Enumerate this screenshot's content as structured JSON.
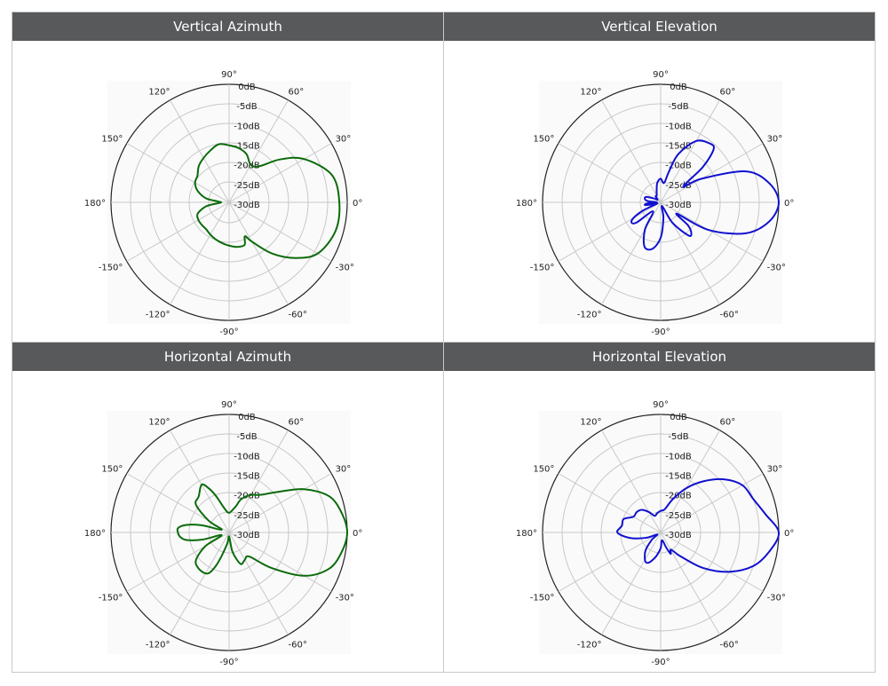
{
  "chart_data": [
    {
      "type": "polar",
      "title": "Vertical Azimuth",
      "color": "#0a6b0a",
      "radial_labels": [
        "0dB",
        "-5dB",
        "-10dB",
        "-15dB",
        "-20dB",
        "-25dB",
        "-30dB"
      ],
      "angle_labels": [
        "0°",
        "30°",
        "60°",
        "90°",
        "120°",
        "150°",
        "180°",
        "-150°",
        "-120°",
        "-90°",
        "-60°",
        "-30°"
      ],
      "rlim": [
        -30,
        0
      ],
      "grid": true,
      "series": [
        {
          "theta": [
            0,
            15,
            30,
            40,
            50,
            60,
            70,
            80,
            90,
            100,
            110,
            120,
            130,
            140,
            150,
            160,
            170,
            175,
            180,
            185,
            190,
            200,
            210,
            220,
            230,
            240,
            250,
            260,
            270,
            280,
            290,
            295,
            300,
            310,
            320,
            330,
            345
          ],
          "r": [
            -2,
            -3,
            -8,
            -13,
            -18,
            -19,
            -17,
            -16,
            -15.5,
            -15,
            -16,
            -17,
            -18,
            -19.5,
            -20,
            -21.5,
            -24,
            -27,
            -28,
            -27,
            -24,
            -21.5,
            -21,
            -21,
            -21,
            -20.5,
            -20,
            -19.5,
            -19,
            -18.5,
            -18.5,
            -20.5,
            -18.5,
            -13,
            -8,
            -4,
            -2
          ]
        }
      ]
    },
    {
      "type": "polar",
      "title": "Vertical Elevation",
      "color": "#1010d0",
      "radial_labels": [
        "0dB",
        "-5dB",
        "-10dB",
        "-15dB",
        "-20dB",
        "-25dB",
        "-30dB"
      ],
      "angle_labels": [
        "0°",
        "30°",
        "60°",
        "90°",
        "120°",
        "150°",
        "180°",
        "-150°",
        "-120°",
        "-90°",
        "-60°",
        "-30°"
      ],
      "rlim": [
        -30,
        0
      ],
      "grid": true,
      "series": [
        {
          "theta": [
            0,
            10,
            20,
            30,
            35,
            40,
            45,
            50,
            60,
            70,
            75,
            80,
            90,
            100,
            110,
            120,
            130,
            140,
            150,
            160,
            170,
            175,
            180,
            185,
            190,
            195,
            200,
            205,
            210,
            215,
            220,
            230,
            240,
            250,
            260,
            270,
            280,
            290,
            300,
            310,
            315,
            320,
            325,
            330,
            340,
            350
          ],
          "r": [
            0,
            -2,
            -7,
            -18,
            -23,
            -16,
            -11,
            -10.5,
            -12,
            -17,
            -22,
            -25,
            -24,
            -25,
            -27,
            -28,
            -28,
            -29,
            -28,
            -26,
            -26,
            -27,
            -29,
            -26.5,
            -26,
            -28,
            -29,
            -25,
            -22,
            -21,
            -22,
            -27,
            -22,
            -18,
            -18,
            -21,
            -26,
            -29,
            -24,
            -19,
            -19,
            -21,
            -25,
            -16,
            -7,
            -2
          ]
        }
      ]
    },
    {
      "type": "polar",
      "title": "Horizontal Azimuth",
      "color": "#0a6b0a",
      "radial_labels": [
        "0dB",
        "-5dB",
        "-10dB",
        "-15dB",
        "-20dB",
        "-25dB",
        "-30dB"
      ],
      "angle_labels": [
        "0°",
        "30°",
        "60°",
        "90°",
        "120°",
        "150°",
        "180°",
        "-150°",
        "-120°",
        "-90°",
        "-60°",
        "-30°"
      ],
      "rlim": [
        -30,
        0
      ],
      "grid": true,
      "series": [
        {
          "theta": [
            0,
            10,
            20,
            30,
            40,
            50,
            60,
            70,
            75,
            80,
            90,
            100,
            110,
            115,
            120,
            130,
            140,
            150,
            160,
            165,
            170,
            175,
            180,
            185,
            190,
            195,
            200,
            210,
            220,
            230,
            240,
            245,
            250,
            260,
            270,
            280,
            290,
            300,
            310,
            320,
            330,
            340,
            350
          ],
          "r": [
            0,
            -1,
            -3,
            -8,
            -14,
            -17.5,
            -19,
            -21,
            -23,
            -24,
            -25,
            -24,
            -20,
            -17.5,
            -16,
            -18,
            -19,
            -24,
            -28,
            -23,
            -19,
            -17,
            -17,
            -17.5,
            -19,
            -23,
            -28,
            -23,
            -19,
            -18,
            -18,
            -19,
            -22,
            -27,
            -29,
            -25,
            -21.5,
            -22,
            -22,
            -16,
            -8,
            -3,
            -1
          ]
        }
      ]
    },
    {
      "type": "polar",
      "title": "Horizontal Elevation",
      "color": "#1010d0",
      "radial_labels": [
        "0dB",
        "-5dB",
        "-10dB",
        "-15dB",
        "-20dB",
        "-25dB",
        "-30dB"
      ],
      "angle_labels": [
        "0°",
        "30°",
        "60°",
        "90°",
        "120°",
        "150°",
        "180°",
        "-150°",
        "-120°",
        "-90°",
        "-60°",
        "-30°"
      ],
      "rlim": [
        -30,
        0
      ],
      "grid": true,
      "series": [
        {
          "theta": [
            0,
            10,
            20,
            30,
            40,
            50,
            60,
            70,
            80,
            90,
            100,
            110,
            120,
            130,
            140,
            150,
            160,
            170,
            180,
            190,
            200,
            210,
            220,
            230,
            240,
            245,
            250,
            255,
            260,
            270,
            280,
            290,
            295,
            300,
            305,
            310,
            320,
            330,
            340,
            350
          ],
          "r": [
            0,
            -3,
            -5,
            -6,
            -9,
            -13,
            -17,
            -21,
            -24,
            -24.5,
            -25,
            -25.5,
            -24,
            -22.5,
            -22,
            -22,
            -20,
            -20,
            -19,
            -22,
            -26,
            -29,
            -27,
            -24,
            -22,
            -21.5,
            -22,
            -23,
            -24,
            -26,
            -28,
            -26,
            -24,
            -25,
            -24,
            -22,
            -16,
            -10,
            -5,
            -2
          ]
        }
      ]
    }
  ]
}
